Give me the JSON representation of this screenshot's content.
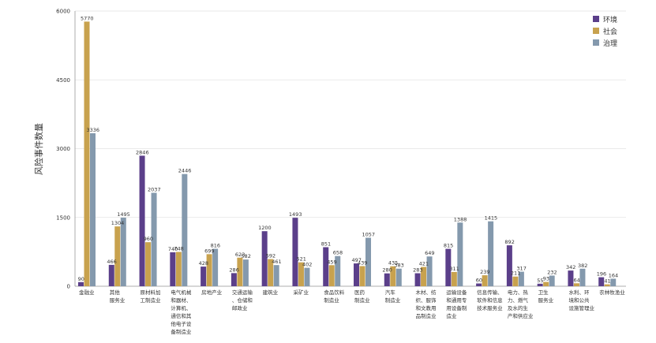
{
  "chart_data": {
    "type": "bar",
    "ylabel": "风险事件数量",
    "xlabel": "",
    "ylim": [
      0,
      6000
    ],
    "yticks": [
      0,
      1500,
      3000,
      4500,
      6000
    ],
    "grid": true,
    "legend_position": "top-right",
    "categories": [
      [
        "金融业"
      ],
      [
        "其他",
        "服务业"
      ],
      [
        "原材料加",
        "工制造业"
      ],
      [
        "电气机械",
        "和器材、",
        "计算机、",
        "通信和其",
        "他电子设",
        "备制造业"
      ],
      [
        "房地产业"
      ],
      [
        "交通运输",
        "、仓储和",
        "邮政业"
      ],
      [
        "建筑业"
      ],
      [
        "采矿业"
      ],
      [
        "食品饮料",
        "制造业"
      ],
      [
        "医药",
        "制造业"
      ],
      [
        "汽车",
        "制造业"
      ],
      [
        "木材、纺",
        "织、服饰",
        "和文教用",
        "品制造业"
      ],
      [
        "运输设备",
        "和通用专",
        "用设备制",
        "造业"
      ],
      [
        "信息传输、",
        "软件和信息",
        "技术服务业"
      ],
      [
        "电力、热",
        "力、燃气",
        "及水的生",
        "产和供应业"
      ],
      [
        "卫生",
        "服务业"
      ],
      [
        "水利、环",
        "境和公共",
        "设施管理业"
      ],
      [
        "农林牧渔业"
      ]
    ],
    "series": [
      {
        "name": "环境",
        "color": "#5b3f8a",
        "values": [
          90,
          466,
          2846,
          740,
          428,
          286,
          1200,
          1493,
          851,
          497,
          280,
          283,
          815,
          60,
          892,
          55,
          342,
          196
        ]
      },
      {
        "name": "社会",
        "color": "#c8a24e",
        "values": [
          5770,
          1304,
          960,
          748,
          699,
          623,
          592,
          521,
          459,
          439,
          435,
          421,
          311,
          239,
          211,
          93,
          64,
          41
        ]
      },
      {
        "name": "治理",
        "color": "#8499ad",
        "values": [
          3336,
          1495,
          2037,
          2446,
          816,
          582,
          461,
          402,
          658,
          1057,
          383,
          649,
          1388,
          1415,
          317,
          232,
          382,
          164
        ]
      }
    ]
  }
}
